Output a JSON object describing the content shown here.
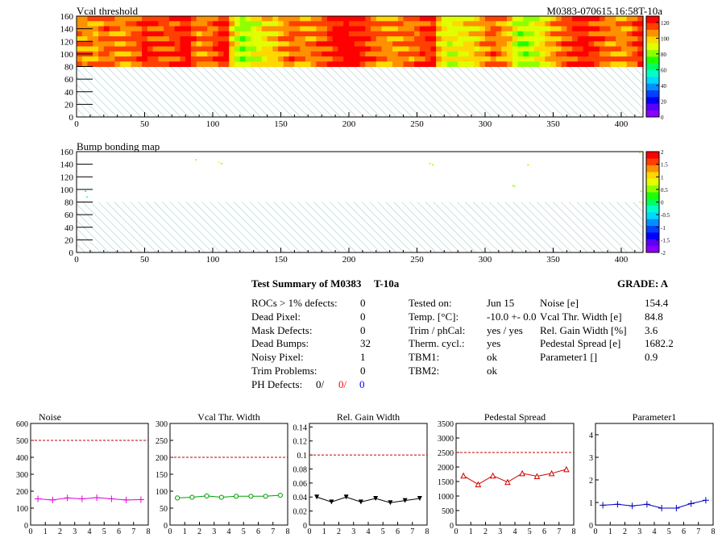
{
  "header": {
    "id_label": "M0383-070615.16:58T-10a"
  },
  "chart_data": [
    {
      "type": "heatmap",
      "title": "Vcal threshold",
      "xlim": [
        0,
        416
      ],
      "ylim": [
        0,
        160
      ],
      "x_ticks": [
        "0",
        "50",
        "100",
        "150",
        "200",
        "250",
        "300",
        "350",
        "400"
      ],
      "y_ticks": [
        "0",
        "20",
        "40",
        "60",
        "80",
        "100",
        "120",
        "140",
        "160"
      ],
      "z_ticks": [
        "0",
        "20",
        "40",
        "60",
        "80",
        "100",
        "120"
      ],
      "zlim": [
        0,
        128
      ],
      "filled_rows": [
        80,
        160
      ],
      "hatched_rows": [
        0,
        80
      ],
      "column_values": [
        108,
        105,
        106,
        104,
        110,
        112,
        110,
        108,
        107,
        109,
        111,
        114,
        122,
        118,
        116,
        115,
        113,
        115,
        117,
        122,
        126,
        112,
        108,
        110,
        111,
        115,
        120,
        122,
        100,
        88,
        82,
        85,
        88,
        92,
        95,
        97,
        98,
        104,
        109,
        112,
        110,
        108,
        107,
        110,
        112,
        114,
        118,
        122,
        125,
        128,
        126,
        124,
        120,
        115,
        112,
        110,
        108,
        106,
        105,
        108,
        110,
        110,
        112,
        116,
        118,
        120,
        100,
        94,
        90,
        92,
        94,
        95,
        97,
        99,
        104,
        109,
        112,
        108,
        104,
        100,
        88,
        84,
        83,
        86,
        90,
        95,
        100,
        104,
        108,
        112,
        115,
        118,
        120,
        122,
        118,
        115,
        112,
        110,
        108,
        108,
        106,
        110,
        114,
        120
      ],
      "z_palette": [
        "#8a00ff",
        "#5a00ff",
        "#0000ff",
        "#0040ff",
        "#0090ff",
        "#00d8ff",
        "#00ffc8",
        "#00ff60",
        "#20ff00",
        "#90ff00",
        "#e0ff00",
        "#ffd800",
        "#ff9000",
        "#ff4000",
        "#ff0000"
      ]
    },
    {
      "type": "heatmap",
      "title": "Bump bonding map",
      "xlim": [
        0,
        416
      ],
      "ylim": [
        0,
        160
      ],
      "x_ticks": [
        "0",
        "50",
        "100",
        "150",
        "200",
        "250",
        "300",
        "350",
        "400"
      ],
      "y_ticks": [
        "0",
        "20",
        "40",
        "60",
        "80",
        "100",
        "120",
        "140",
        "160"
      ],
      "z_ticks": [
        "-2",
        "-1.5",
        "-1",
        "-0.5",
        "0",
        "0.5",
        "1",
        "1.5",
        "2"
      ],
      "zlim": [
        -2,
        2
      ],
      "hatched_rows": [
        0,
        80
      ],
      "points": [
        [
          87,
          148,
          0.6
        ],
        [
          104,
          144,
          0.7
        ],
        [
          106,
          142,
          0.6
        ],
        [
          259,
          142,
          0.5
        ],
        [
          261,
          140,
          0.5
        ],
        [
          331,
          140,
          0.6
        ],
        [
          320,
          107,
          0.6
        ],
        [
          321,
          106,
          0.6
        ],
        [
          6,
          98,
          -0.1
        ],
        [
          7,
          89,
          -0.3
        ],
        [
          413,
          159,
          0.8
        ],
        [
          414,
          98,
          0.6
        ],
        [
          413,
          81,
          0.7
        ]
      ],
      "z_palette": [
        "#8a00ff",
        "#5a00ff",
        "#0000ff",
        "#0040ff",
        "#0090ff",
        "#00d8ff",
        "#00ffc8",
        "#00ff60",
        "#20ff00",
        "#90ff00",
        "#e0ff00",
        "#ffd800",
        "#ff9000",
        "#ff4000",
        "#ff0000"
      ]
    },
    {
      "type": "line",
      "title": "Noise",
      "color": "#e000e0",
      "marker": "plus",
      "x": [
        0.5,
        1.5,
        2.5,
        3.5,
        4.5,
        5.5,
        6.5,
        7.5
      ],
      "values": [
        155,
        148,
        160,
        155,
        162,
        155,
        148,
        150
      ],
      "reference": 500,
      "xlim": [
        0,
        8
      ],
      "ylim": [
        0,
        600
      ],
      "x_ticks": [
        "0",
        "1",
        "2",
        "3",
        "4",
        "5",
        "6",
        "7",
        "8"
      ],
      "y_ticks": [
        "0",
        "100",
        "200",
        "300",
        "400",
        "500",
        "600"
      ]
    },
    {
      "type": "line",
      "title": "Vcal Thr. Width",
      "color": "#00a000",
      "marker": "circle",
      "x": [
        0.5,
        1.5,
        2.5,
        3.5,
        4.5,
        5.5,
        6.5,
        7.5
      ],
      "values": [
        80,
        82,
        86,
        82,
        85,
        85,
        85,
        88
      ],
      "reference": 200,
      "xlim": [
        0,
        8
      ],
      "ylim": [
        0,
        300
      ],
      "x_ticks": [
        "0",
        "1",
        "2",
        "3",
        "4",
        "5",
        "6",
        "7",
        "8"
      ],
      "y_ticks": [
        "0",
        "50",
        "100",
        "150",
        "200",
        "250",
        "300"
      ]
    },
    {
      "type": "line",
      "title": "Rel. Gain Width",
      "color": "#000000",
      "marker": "triangle-down",
      "x": [
        0.5,
        1.5,
        2.5,
        3.5,
        4.5,
        5.5,
        6.5,
        7.5
      ],
      "values": [
        0.04,
        0.033,
        0.04,
        0.033,
        0.038,
        0.032,
        0.035,
        0.038
      ],
      "reference": 0.1,
      "xlim": [
        0,
        8
      ],
      "ylim": [
        0,
        0.145
      ],
      "x_ticks": [
        "0",
        "1",
        "2",
        "3",
        "4",
        "5",
        "6",
        "7",
        "8"
      ],
      "y_ticks": [
        "0",
        "0.02",
        "0.04",
        "0.06",
        "0.08",
        "0.1",
        "0.12",
        "0.14"
      ]
    },
    {
      "type": "line",
      "title": "Pedestal Spread",
      "color": "#d00000",
      "marker": "triangle-up",
      "x": [
        0.5,
        1.5,
        2.5,
        3.5,
        4.5,
        5.5,
        6.5,
        7.5
      ],
      "values": [
        1700,
        1400,
        1700,
        1480,
        1780,
        1680,
        1780,
        1920
      ],
      "reference": 2500,
      "xlim": [
        0,
        8
      ],
      "ylim": [
        0,
        3500
      ],
      "x_ticks": [
        "0",
        "1",
        "2",
        "3",
        "4",
        "5",
        "6",
        "7",
        "8"
      ],
      "y_ticks": [
        "0",
        "500",
        "1000",
        "1500",
        "2000",
        "2500",
        "3000",
        "3500"
      ]
    },
    {
      "type": "line",
      "title": "Parameter1",
      "color": "#0000c0",
      "marker": "plus",
      "x": [
        0.5,
        1.5,
        2.5,
        3.5,
        4.5,
        5.5,
        6.5,
        7.5
      ],
      "values": [
        0.88,
        0.92,
        0.85,
        0.92,
        0.75,
        0.75,
        0.95,
        1.1
      ],
      "reference": null,
      "xlim": [
        0,
        8
      ],
      "ylim": [
        0,
        4.5
      ],
      "x_ticks": [
        "0",
        "1",
        "2",
        "3",
        "4",
        "5",
        "6",
        "7",
        "8"
      ],
      "y_ticks": [
        "0",
        "1",
        "2",
        "3",
        "4"
      ]
    }
  ],
  "summary": {
    "title": "Test Summary of M0383",
    "temp_tag": "T-10a",
    "grade": "GRADE:  A",
    "left": [
      {
        "label": "ROCs > 1% defects:",
        "value": "0"
      },
      {
        "label": "Dead Pixel:",
        "value": "0"
      },
      {
        "label": "Mask Defects:",
        "value": "0"
      },
      {
        "label": "Dead Bumps:",
        "value": "32"
      },
      {
        "label": "Noisy Pixel:",
        "value": "1"
      },
      {
        "label": "Trim Problems:",
        "value": "0"
      }
    ],
    "ph_label": "PH Defects:",
    "ph_values": [
      "0/",
      "0/",
      "0"
    ],
    "ph_colors": [
      "#000000",
      "#ff0000",
      "#0000ff"
    ],
    "middle": [
      {
        "label": "Tested on:",
        "value": "Jun 15"
      },
      {
        "label": "Temp. [°C]:",
        "value": "-10.0 +- 0.0"
      },
      {
        "label": "Trim / phCal:",
        "value": "yes / yes"
      },
      {
        "label": "Therm. cycl.:",
        "value": "yes"
      },
      {
        "label": "TBM1:",
        "value": "ok"
      },
      {
        "label": "TBM2:",
        "value": "ok"
      }
    ],
    "right": [
      {
        "label": "Noise [e]",
        "value": "154.4"
      },
      {
        "label": "Vcal Thr. Width [e]",
        "value": "84.8"
      },
      {
        "label": "Rel. Gain Width [%]",
        "value": "3.6"
      },
      {
        "label": "Pedestal Spread [e]",
        "value": "1682.2"
      },
      {
        "label": "Parameter1 []",
        "value": "0.9"
      }
    ]
  }
}
